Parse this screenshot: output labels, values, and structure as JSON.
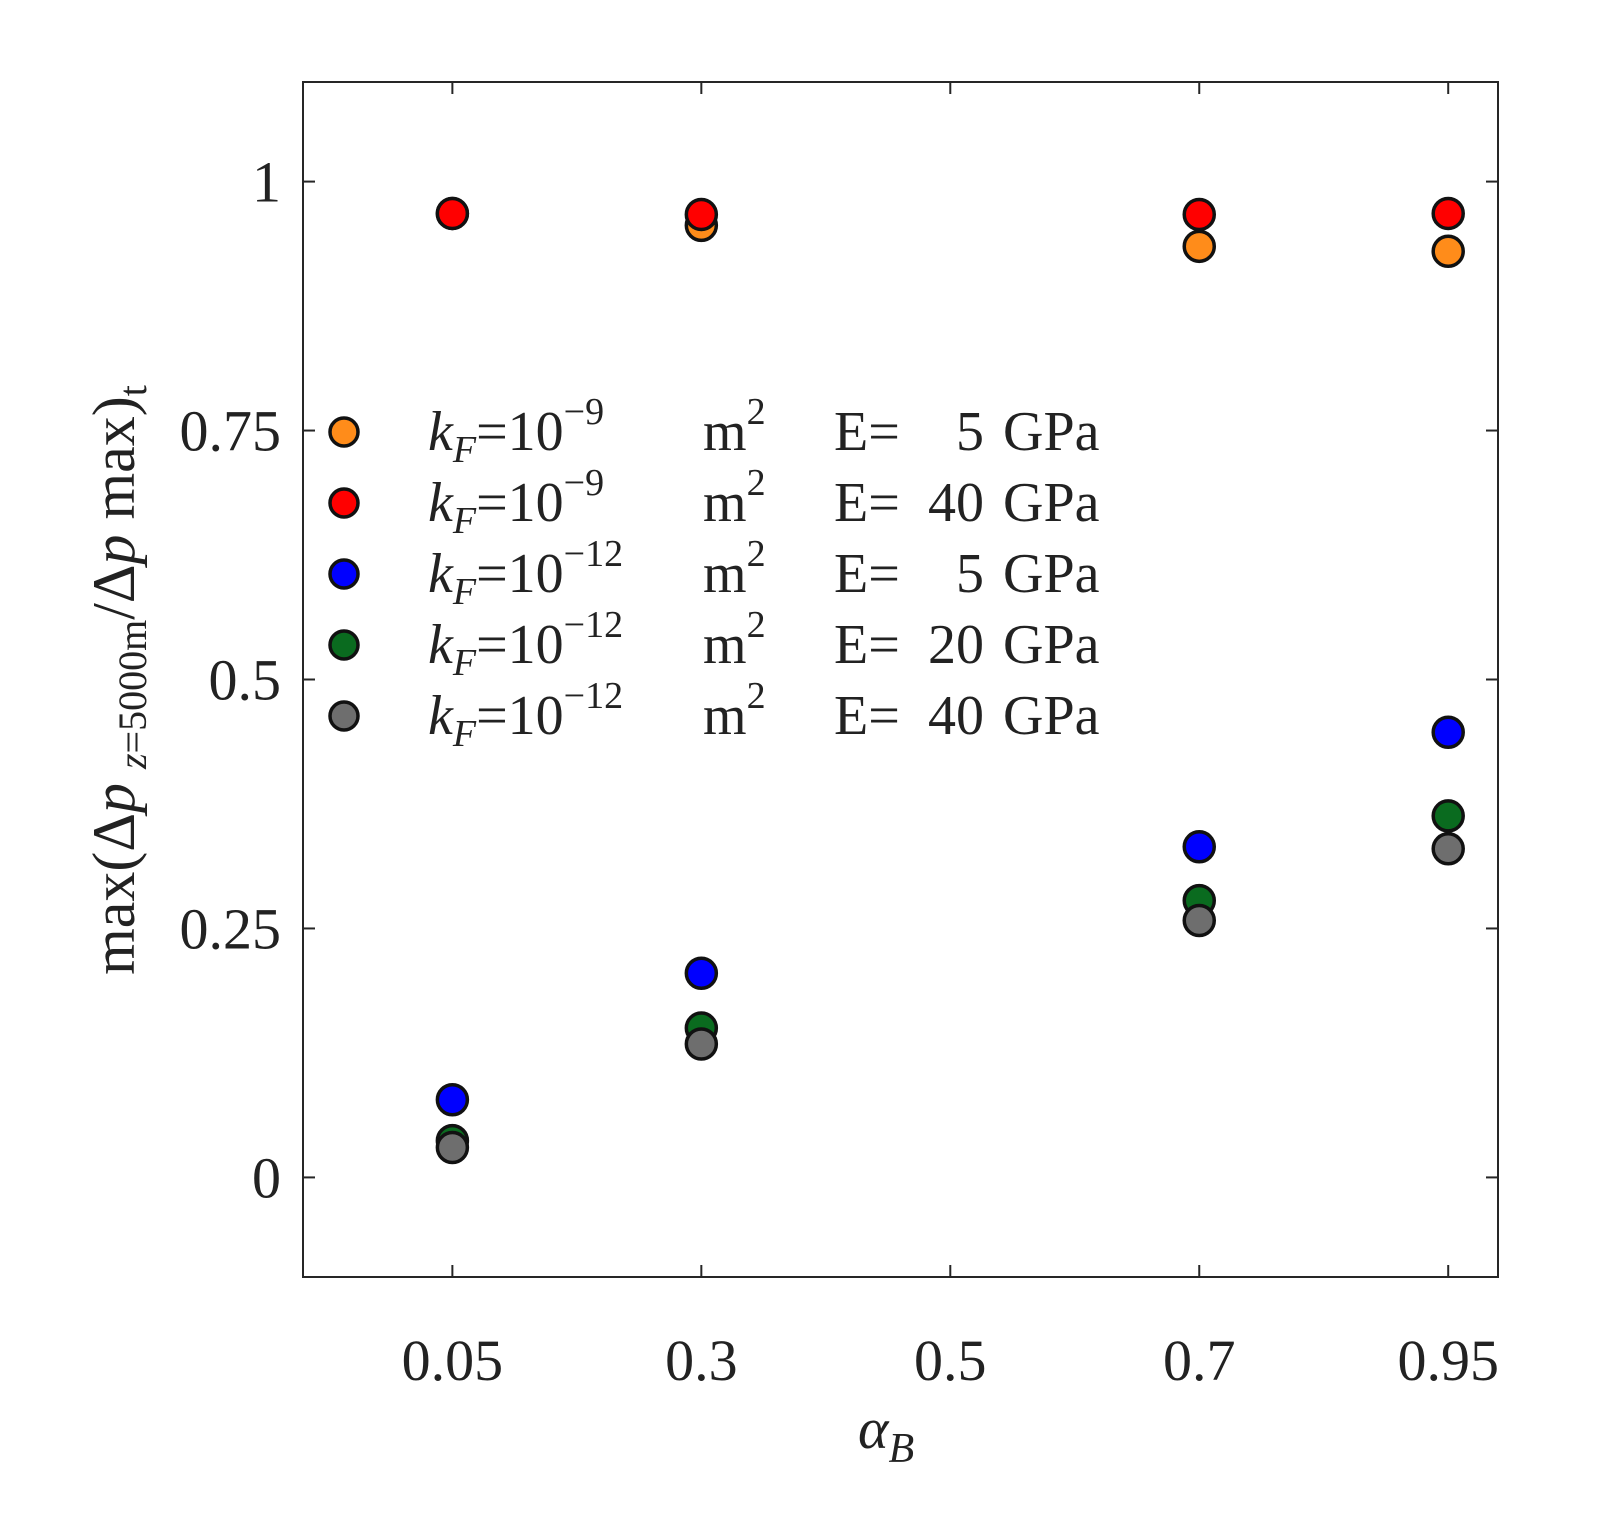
{
  "chart_data": {
    "type": "scatter",
    "x_categories": [
      "0.05",
      "0.3",
      "0.5",
      "0.7",
      "0.95"
    ],
    "xlim": [
      -0.6,
      4.2
    ],
    "ylim": [
      -0.1,
      1.1
    ],
    "yticks": [
      0,
      0.25,
      0.5,
      0.75,
      1
    ],
    "ytick_labels": [
      "0",
      "0.25",
      "0.5",
      "0.75",
      "1"
    ],
    "xlabel": {
      "main": "α",
      "sub": "B"
    },
    "ylabel": {
      "part1": "max(Δ",
      "p1": "p",
      "sub_z": "z",
      "sub_rest": "=5000m",
      "part2": "/Δ",
      "p2": "p",
      "part3": " max)",
      "t": "t"
    },
    "grid": false,
    "legend_position": "left",
    "series": [
      {
        "name": "k_F=10^-9 m^2 E=5 GPa",
        "color": "#ff8c1a",
        "points": [
          [
            0.05,
            0.968
          ],
          [
            0.3,
            0.956
          ],
          [
            0.7,
            0.935
          ],
          [
            0.95,
            0.93
          ]
        ]
      },
      {
        "name": "k_F=10^-9 m^2 E=40 GPa",
        "color": "#ff0000",
        "points": [
          [
            0.05,
            0.968
          ],
          [
            0.3,
            0.967
          ],
          [
            0.7,
            0.967
          ],
          [
            0.95,
            0.968
          ]
        ]
      },
      {
        "name": "k_F=10^-12 m^2 E=5 GPa",
        "color": "#0000ff",
        "points": [
          [
            0.05,
            0.078
          ],
          [
            0.3,
            0.205
          ],
          [
            0.7,
            0.332
          ],
          [
            0.95,
            0.447
          ]
        ]
      },
      {
        "name": "k_F=10^-12 m^2 E=20 GPa",
        "color": "#0a6b1f",
        "points": [
          [
            0.05,
            0.037
          ],
          [
            0.3,
            0.15
          ],
          [
            0.7,
            0.278
          ],
          [
            0.95,
            0.363
          ]
        ]
      },
      {
        "name": "k_F=10^-12 m^2 E=40 GPa",
        "color": "#6e6e6e",
        "points": [
          [
            0.05,
            0.03
          ],
          [
            0.3,
            0.134
          ],
          [
            0.7,
            0.258
          ],
          [
            0.95,
            0.33
          ]
        ]
      }
    ],
    "legend_entries": [
      {
        "k": "k",
        "F": "F",
        "eq": "=10",
        "exp": "−9",
        "unit": "m",
        "unit_exp": "2",
        "e_label": "E=",
        "e_val": "5",
        "gpa": "GPa",
        "color": "#ff8c1a"
      },
      {
        "k": "k",
        "F": "F",
        "eq": "=10",
        "exp": "−9",
        "unit": "m",
        "unit_exp": "2",
        "e_label": "E=",
        "e_val": "40",
        "gpa": "GPa",
        "color": "#ff0000"
      },
      {
        "k": "k",
        "F": "F",
        "eq": "=10",
        "exp": "−12",
        "unit": "m",
        "unit_exp": "2",
        "e_label": "E=",
        "e_val": "5",
        "gpa": "GPa",
        "color": "#0000ff"
      },
      {
        "k": "k",
        "F": "F",
        "eq": "=10",
        "exp": "−12",
        "unit": "m",
        "unit_exp": "2",
        "e_label": "E=",
        "e_val": "20",
        "gpa": "GPa",
        "color": "#0a6b1f"
      },
      {
        "k": "k",
        "F": "F",
        "eq": "=10",
        "exp": "−12",
        "unit": "m",
        "unit_exp": "2",
        "e_label": "E=",
        "e_val": "40",
        "gpa": "GPa",
        "color": "#6e6e6e"
      }
    ]
  }
}
